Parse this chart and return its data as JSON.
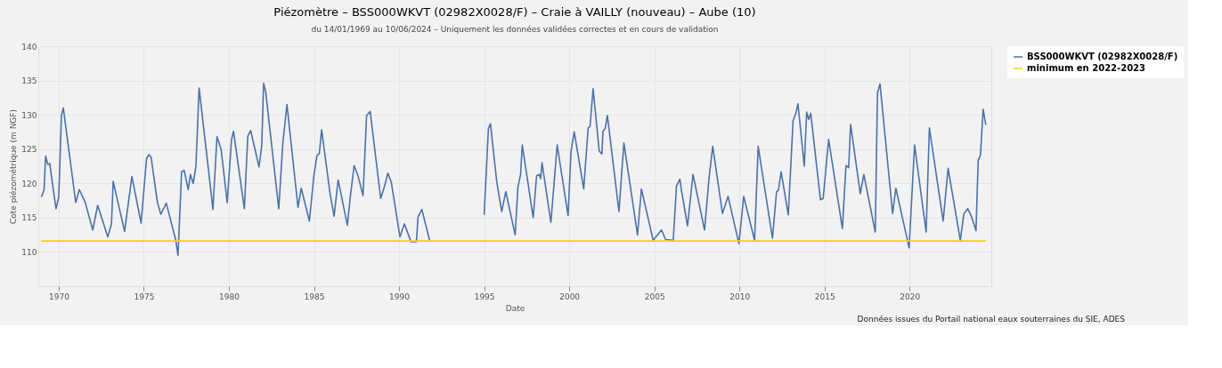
{
  "chart_data": {
    "type": "line",
    "title": "Piézomètre – BSS000WKVT (02982X0028/F) – Craie à VAILLY (nouveau) – Aube (10)",
    "subtitle": "du 14/01/1969 au 10/06/2024 – Uniquement les données validées correctes et en cours de validation",
    "xlabel": "Date",
    "ylabel": "Cote piézométrique (m NGF)",
    "xlim": [
      1968.8,
      2024.8
    ],
    "xticks": [
      1970,
      1975,
      1980,
      1985,
      1990,
      1995,
      2000,
      2005,
      2010,
      2015,
      2020
    ],
    "ylim": [
      105,
      140
    ],
    "yticks": [
      110,
      115,
      120,
      125,
      130,
      135,
      140
    ],
    "grid": true,
    "legend": "top right",
    "line_style": "solid",
    "annotations": [
      "Données issues du Portail national eaux souterraines du SIE, ADES"
    ],
    "series": [
      {
        "name": "BSS000WKVT (02982X0028/F)",
        "color": "#4a72a8",
        "x": [
          1968.98,
          1969.14,
          1969.23,
          1969.35,
          1969.47,
          1969.84,
          1970.0,
          1970.16,
          1970.27,
          1971.0,
          1971.21,
          1971.56,
          1972.0,
          1972.29,
          1972.88,
          1973.1,
          1973.2,
          1973.87,
          1974.3,
          1974.84,
          1975.16,
          1975.3,
          1975.43,
          1975.8,
          1976.0,
          1976.32,
          1976.88,
          1977.01,
          1977.22,
          1977.37,
          1977.61,
          1977.74,
          1977.9,
          1978.06,
          1978.25,
          1978.9,
          1979.06,
          1979.3,
          1979.54,
          1979.9,
          1980.15,
          1980.27,
          1980.91,
          1981.11,
          1981.28,
          1981.77,
          1981.93,
          1982.04,
          1982.16,
          1982.93,
          1983.17,
          1983.41,
          1984.06,
          1984.25,
          1984.73,
          1985.0,
          1985.18,
          1985.31,
          1985.45,
          1985.95,
          1986.18,
          1986.42,
          1986.96,
          1987.15,
          1987.36,
          1987.6,
          1987.88,
          1988.09,
          1988.3,
          1988.92,
          1989.16,
          1989.34,
          1989.54,
          1990.05,
          1990.31,
          1990.7,
          1991.02,
          1991.11,
          1991.34,
          1991.79,
          1993.0,
          1995.0,
          1995.25,
          1995.37,
          1995.74,
          1996.03,
          1996.27,
          1996.82,
          1996.98,
          1997.14,
          1997.24,
          1997.88,
          1998.08,
          1998.24,
          1998.32,
          1998.4,
          1998.92,
          1999.29,
          1999.93,
          2000.1,
          2000.29,
          2000.85,
          2001.11,
          2001.22,
          2001.4,
          2001.76,
          2001.92,
          2001.98,
          2002.11,
          2002.24,
          2002.92,
          2003.21,
          2004.01,
          2004.24,
          2004.93,
          2005.42,
          2005.66,
          2006.11,
          2006.3,
          2006.5,
          2006.59,
          2006.95,
          2007.27,
          2007.95,
          2008.21,
          2008.43,
          2009.0,
          2009.33,
          2009.97,
          2010.25,
          2010.89,
          2011.1,
          2011.94,
          2012.18,
          2012.29,
          2012.45,
          2012.87,
          2013.15,
          2013.31,
          2013.44,
          2013.81,
          2013.95,
          2014.07,
          2014.19,
          2014.76,
          2014.92,
          2015.24,
          2016.05,
          2016.26,
          2016.42,
          2016.53,
          2017.1,
          2017.31,
          2017.98,
          2018.11,
          2018.26,
          2019.0,
          2019.19,
          2019.97,
          2020.29,
          2020.97,
          2021.16,
          2021.97,
          2022.26,
          2022.98,
          2023.19,
          2023.42,
          2023.63,
          2023.9,
          2024.03,
          2024.16,
          2024.32,
          2024.48
        ],
        "values": [
          118.0,
          119.1,
          124.0,
          122.8,
          122.9,
          116.3,
          118.0,
          129.9,
          131.0,
          117.2,
          119.1,
          117.2,
          113.2,
          116.8,
          112.2,
          114.1,
          120.3,
          113.0,
          121.0,
          114.2,
          123.6,
          124.2,
          123.8,
          117.2,
          115.5,
          117.1,
          111.7,
          109.5,
          121.7,
          121.9,
          119.1,
          121.3,
          120.0,
          122.4,
          133.9,
          119.8,
          116.2,
          126.8,
          125.0,
          117.2,
          126.3,
          127.6,
          116.3,
          126.9,
          127.7,
          122.4,
          125.5,
          134.6,
          133.4,
          116.3,
          125.9,
          131.5,
          116.5,
          119.3,
          114.5,
          121.3,
          124.1,
          124.3,
          127.8,
          118.4,
          115.2,
          120.5,
          113.9,
          118.4,
          122.6,
          121.0,
          118.2,
          129.9,
          130.5,
          117.8,
          119.7,
          121.5,
          120.2,
          112.2,
          114.1,
          111.5,
          111.5,
          115.1,
          116.2,
          111.7,
          null,
          115.4,
          128.0,
          128.7,
          120.2,
          115.9,
          118.8,
          112.5,
          119.4,
          121.3,
          125.6,
          115.0,
          121.1,
          121.3,
          120.7,
          123.0,
          114.3,
          125.6,
          115.3,
          124.6,
          127.5,
          119.2,
          128.1,
          128.3,
          133.8,
          124.7,
          124.3,
          127.6,
          128.0,
          129.9,
          115.9,
          125.9,
          112.5,
          119.2,
          111.7,
          113.2,
          111.8,
          111.7,
          119.6,
          120.6,
          119.0,
          113.8,
          121.3,
          113.2,
          120.7,
          125.4,
          115.6,
          118.1,
          111.2,
          118.1,
          111.7,
          125.4,
          112.0,
          118.8,
          119.0,
          121.7,
          115.4,
          129.1,
          130.2,
          131.6,
          122.5,
          130.4,
          129.3,
          130.2,
          117.6,
          117.8,
          126.4,
          113.4,
          122.6,
          122.3,
          128.6,
          118.5,
          121.3,
          112.9,
          133.2,
          134.5,
          115.6,
          119.3,
          110.6,
          125.6,
          112.9,
          128.1,
          114.5,
          122.2,
          111.7,
          115.6,
          116.3,
          115.2,
          113.1,
          123.4,
          124.1,
          130.8,
          128.5
        ]
      },
      {
        "name": "minimum en 2022-2023",
        "color": "#f2d600",
        "x": [
          1968.98,
          2024.48
        ],
        "values": [
          111.6,
          111.6
        ]
      }
    ]
  }
}
